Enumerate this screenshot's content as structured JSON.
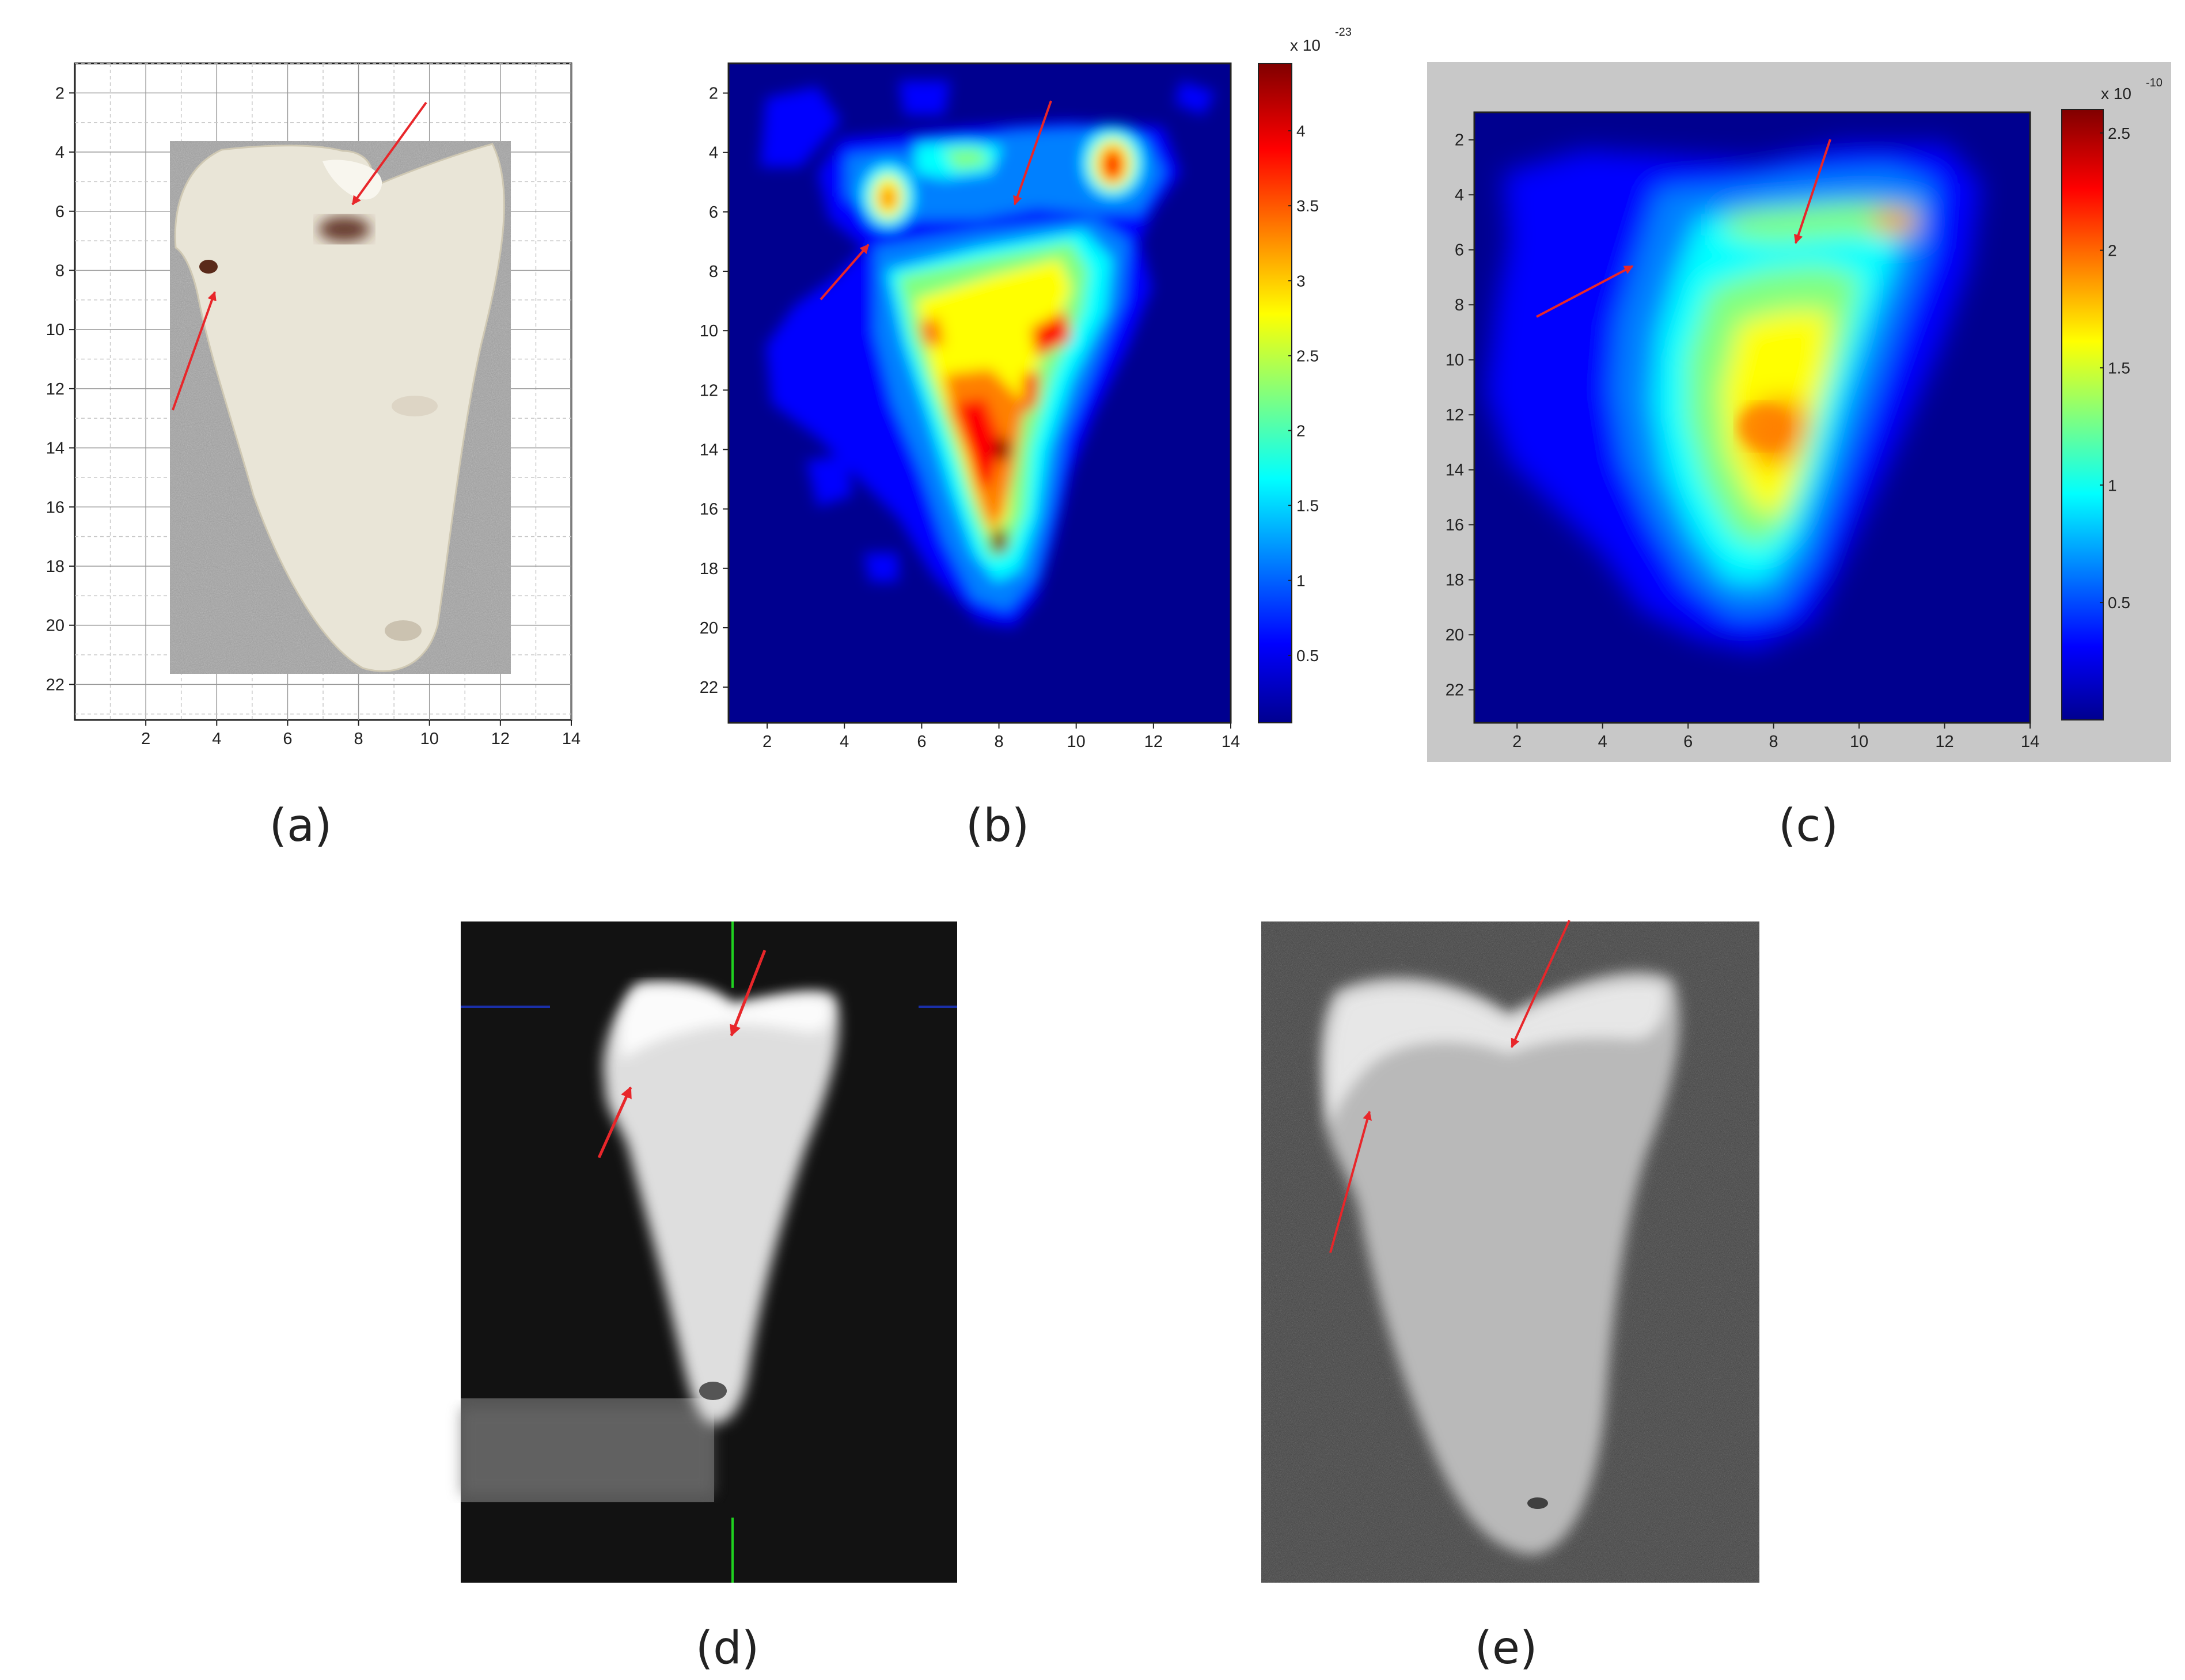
{
  "figure": {
    "panels": [
      {
        "id": "a",
        "caption": "(a)",
        "kind": "photograph",
        "x_ticks": [
          "2",
          "4",
          "6",
          "8",
          "10",
          "12",
          "14"
        ],
        "y_ticks": [
          "2",
          "4",
          "6",
          "8",
          "10",
          "12",
          "14",
          "16",
          "18",
          "20",
          "22"
        ]
      },
      {
        "id": "b",
        "caption": "(b)",
        "kind": "heatmap",
        "x_ticks": [
          "2",
          "4",
          "6",
          "8",
          "10",
          "12",
          "14"
        ],
        "y_ticks": [
          "2",
          "4",
          "6",
          "8",
          "10",
          "12",
          "14",
          "16",
          "18",
          "20",
          "22"
        ],
        "colorbar": {
          "multiplier": "x 10",
          "exponent": "-23",
          "ticks": [
            "0.5",
            "1",
            "1.5",
            "2",
            "2.5",
            "3",
            "3.5",
            "4"
          ]
        }
      },
      {
        "id": "c",
        "caption": "(c)",
        "kind": "heatmap",
        "x_ticks": [
          "2",
          "4",
          "6",
          "8",
          "10",
          "12",
          "14"
        ],
        "y_ticks": [
          "2",
          "4",
          "6",
          "8",
          "10",
          "12",
          "14",
          "16",
          "18",
          "20",
          "22"
        ],
        "colorbar": {
          "multiplier": "x 10",
          "exponent": "-10",
          "ticks": [
            "0.5",
            "1",
            "1.5",
            "2",
            "2.5"
          ]
        }
      },
      {
        "id": "d",
        "caption": "(d)",
        "kind": "radiograph"
      },
      {
        "id": "e",
        "caption": "(e)",
        "kind": "radiograph"
      }
    ],
    "colors": {
      "arrow": "#e8262a",
      "jet": [
        "#00008f",
        "#0000ff",
        "#0080ff",
        "#00ffff",
        "#80ff80",
        "#ffff00",
        "#ff8000",
        "#ff0000",
        "#800000"
      ],
      "crosshair_green": "#1fd11f",
      "crosshair_blue": "#1a2fa8"
    }
  }
}
